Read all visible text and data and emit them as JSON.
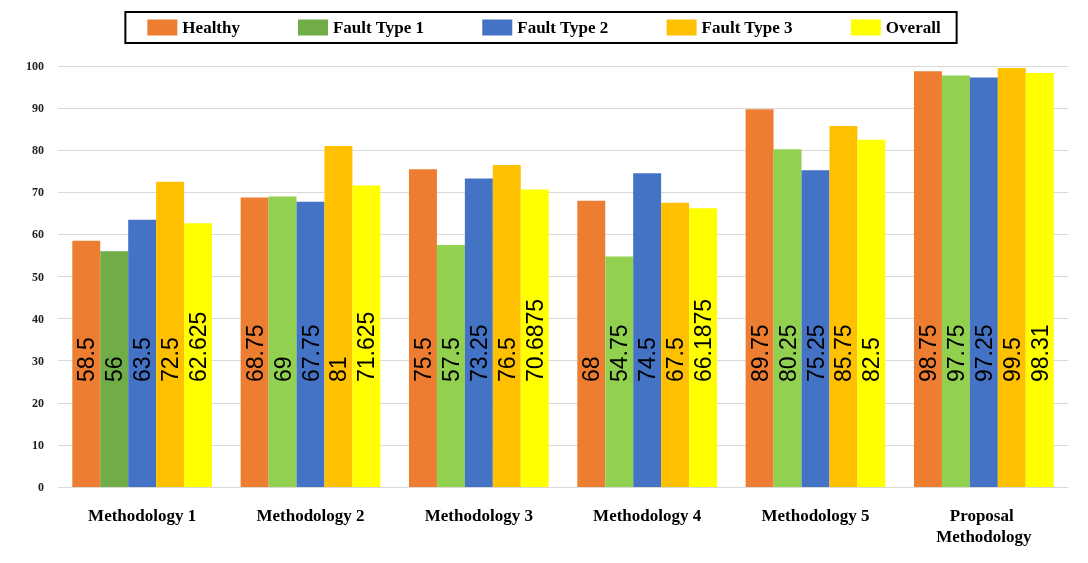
{
  "chart_data": {
    "type": "bar",
    "categories": [
      "Methodology 1",
      "Methodology 2",
      "Methodology 3",
      "Methodology 4",
      "Methodology 5",
      "Proposal Methodology"
    ],
    "series": [
      {
        "name": "Healthy",
        "color": "#ed7d31",
        "values": [
          58.5,
          68.75,
          75.5,
          68,
          89.75,
          98.75
        ]
      },
      {
        "name": "Fault Type 1",
        "color": "#70ad47",
        "colors": [
          "#70ad47",
          "#92d050",
          "#92d050",
          "#92d050",
          "#92d050",
          "#92d050"
        ],
        "values": [
          56,
          69,
          57.5,
          54.75,
          80.25,
          97.75
        ]
      },
      {
        "name": "Fault Type 2",
        "color": "#4472c4",
        "values": [
          63.5,
          67.75,
          73.25,
          74.5,
          75.25,
          97.25
        ]
      },
      {
        "name": "Fault Type 3",
        "color": "#ffc000",
        "values": [
          72.5,
          81,
          76.5,
          67.5,
          85.75,
          99.5
        ]
      },
      {
        "name": "Overall",
        "color": "#ffff00",
        "values": [
          62.625,
          71.625,
          70.6875,
          66.1875,
          82.5,
          98.31
        ]
      }
    ],
    "ylim": [
      0,
      100
    ],
    "yticks": [
      0,
      10,
      20,
      30,
      40,
      50,
      60,
      70,
      80,
      90,
      100
    ],
    "grid": "y",
    "legend": "top",
    "data_labels": true
  }
}
